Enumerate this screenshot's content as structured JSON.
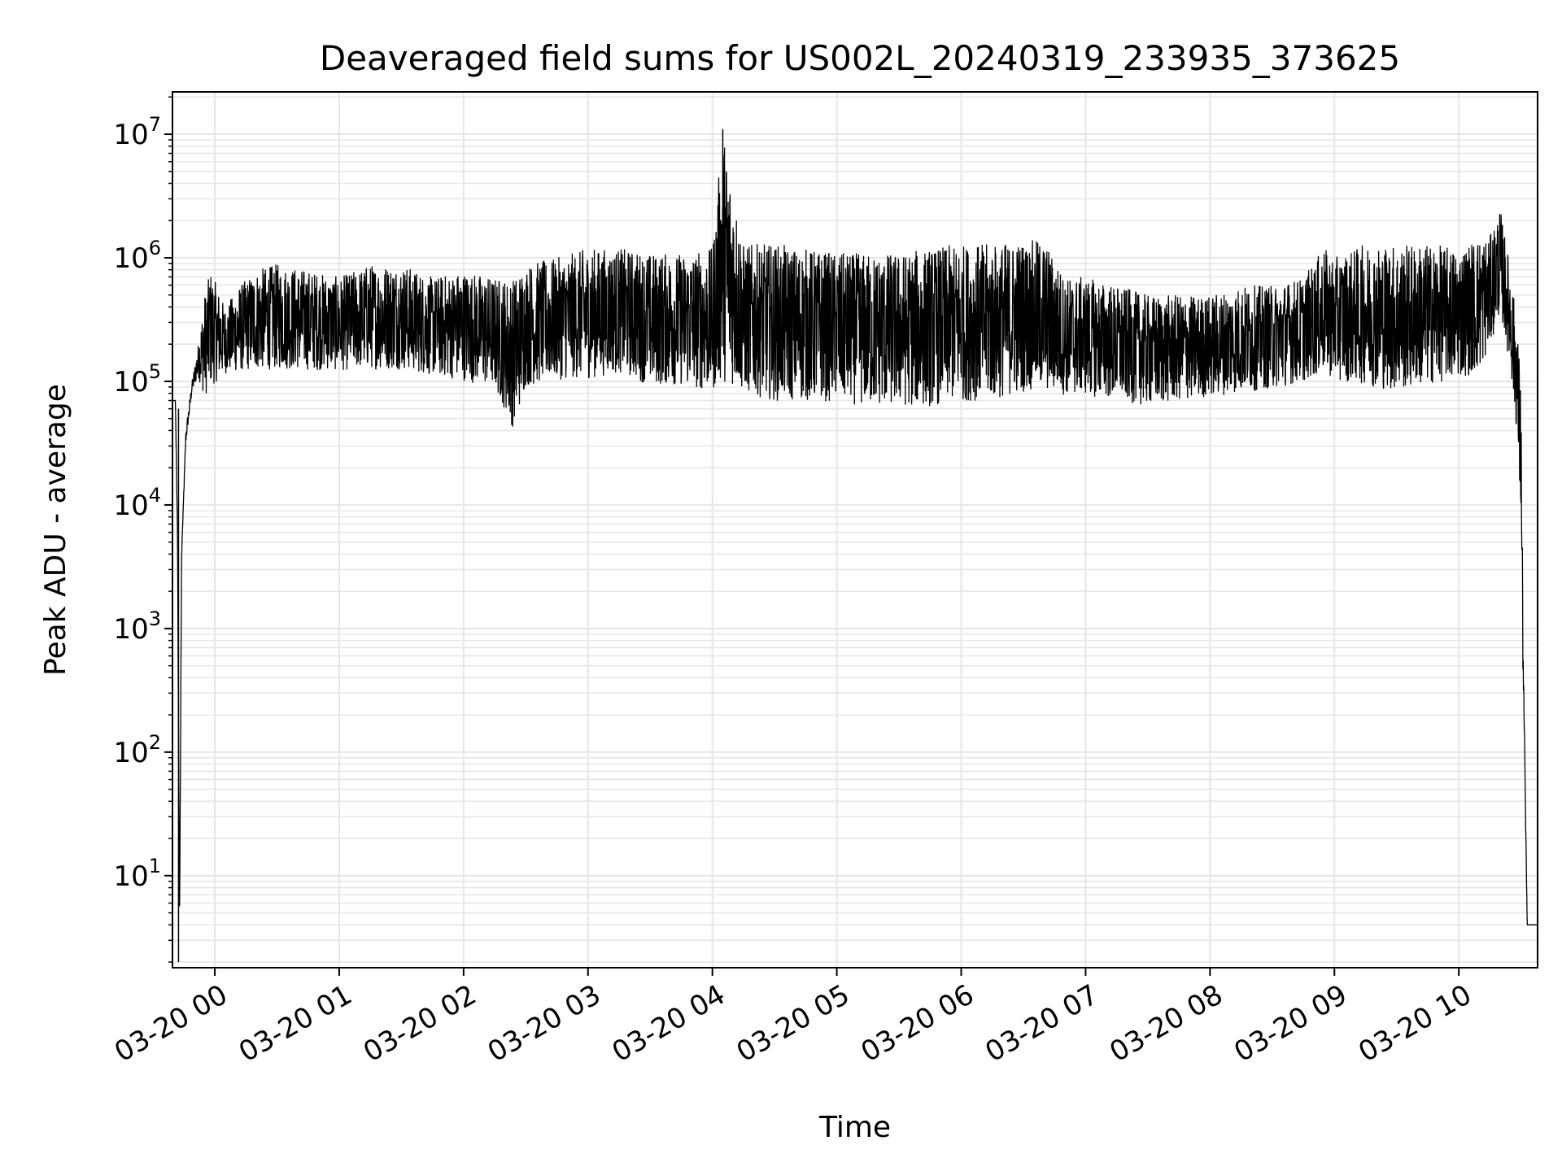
{
  "chart_data": {
    "type": "line",
    "title": "Deaveraged field sums for US002L_20240319_233935_373625",
    "xlabel": "Time",
    "ylabel": "Peak ADU - average",
    "y_scale": "log",
    "ylim": [
      1.8,
      22000000
    ],
    "xlim": [
      "2024-03-19T23:39:35",
      "2024-03-20T10:38:00"
    ],
    "grid": true,
    "grid_minor": true,
    "line_color": "#000000",
    "grid_color": "#e6e6e6",
    "x_ticks": [
      {
        "t": "2024-03-20T00:00:00",
        "label": "03-20 00"
      },
      {
        "t": "2024-03-20T01:00:00",
        "label": "03-20 01"
      },
      {
        "t": "2024-03-20T02:00:00",
        "label": "03-20 02"
      },
      {
        "t": "2024-03-20T03:00:00",
        "label": "03-20 03"
      },
      {
        "t": "2024-03-20T04:00:00",
        "label": "03-20 04"
      },
      {
        "t": "2024-03-20T05:00:00",
        "label": "03-20 05"
      },
      {
        "t": "2024-03-20T06:00:00",
        "label": "03-20 06"
      },
      {
        "t": "2024-03-20T07:00:00",
        "label": "03-20 07"
      },
      {
        "t": "2024-03-20T08:00:00",
        "label": "03-20 08"
      },
      {
        "t": "2024-03-20T09:00:00",
        "label": "03-20 09"
      },
      {
        "t": "2024-03-20T10:00:00",
        "label": "03-20 10"
      }
    ],
    "y_ticks": [
      {
        "value": 10,
        "base": "10",
        "exp": "1"
      },
      {
        "value": 100,
        "base": "10",
        "exp": "2"
      },
      {
        "value": 1000,
        "base": "10",
        "exp": "3"
      },
      {
        "value": 10000,
        "base": "10",
        "exp": "4"
      },
      {
        "value": 100000,
        "base": "10",
        "exp": "5"
      },
      {
        "value": 1000000,
        "base": "10",
        "exp": "6"
      },
      {
        "value": 10000000,
        "base": "10",
        "exp": "7"
      }
    ],
    "series": [
      {
        "x": [
          "2024-03-19T23:39:35",
          "2024-03-19T23:41:00",
          "2024-03-19T23:42:00",
          "2024-03-19T23:43:00",
          "2024-03-19T23:44:00",
          "2024-03-19T23:46:00",
          "2024-03-19T23:49:00",
          "2024-03-19T23:52:00",
          "2024-03-19T23:55:00",
          "2024-03-19T23:58:00",
          "2024-03-20T00:05:00",
          "2024-03-20T00:12:00",
          "2024-03-20T00:20:00",
          "2024-03-20T00:30:00",
          "2024-03-20T00:45:00",
          "2024-03-20T01:00:00",
          "2024-03-20T01:15:00",
          "2024-03-20T01:30:00",
          "2024-03-20T01:45:00",
          "2024-03-20T02:00:00",
          "2024-03-20T02:15:00",
          "2024-03-20T02:24:00",
          "2024-03-20T02:30:00",
          "2024-03-20T02:45:00",
          "2024-03-20T03:00:00",
          "2024-03-20T03:15:00",
          "2024-03-20T03:30:00",
          "2024-03-20T03:45:00",
          "2024-03-20T04:00:00",
          "2024-03-20T04:05:00",
          "2024-03-20T04:15:00",
          "2024-03-20T04:30:00",
          "2024-03-20T04:45:00",
          "2024-03-20T05:00:00",
          "2024-03-20T05:15:00",
          "2024-03-20T05:30:00",
          "2024-03-20T05:45:00",
          "2024-03-20T06:00:00",
          "2024-03-20T06:15:00",
          "2024-03-20T06:30:00",
          "2024-03-20T06:40:00",
          "2024-03-20T06:50:00",
          "2024-03-20T07:00:00",
          "2024-03-20T07:15:00",
          "2024-03-20T07:30:00",
          "2024-03-20T07:45:00",
          "2024-03-20T08:00:00",
          "2024-03-20T08:15:00",
          "2024-03-20T08:30:00",
          "2024-03-20T08:45:00",
          "2024-03-20T08:55:00",
          "2024-03-20T09:00:00",
          "2024-03-20T09:15:00",
          "2024-03-20T09:30:00",
          "2024-03-20T09:45:00",
          "2024-03-20T10:00:00",
          "2024-03-20T10:10:00",
          "2024-03-20T10:15:00",
          "2024-03-20T10:20:00",
          "2024-03-20T10:25:00",
          "2024-03-20T10:28:00",
          "2024-03-20T10:30:00",
          "2024-03-20T10:31:00",
          "2024-03-20T10:33:00",
          "2024-03-20T10:38:00"
        ],
        "upper": [
          70000,
          70000,
          6000,
          4,
          4000,
          40000,
          100000,
          200000,
          500000,
          800000,
          400000,
          600000,
          800000,
          900000,
          800000,
          700000,
          900000,
          900000,
          700000,
          800000,
          700000,
          700000,
          900000,
          1000000,
          1200000,
          1200000,
          1100000,
          1100000,
          1200000,
          11000000,
          1300000,
          1300000,
          1200000,
          1100000,
          1100000,
          1100000,
          1200000,
          1300000,
          1300000,
          1400000,
          1400000,
          700000,
          700000,
          600000,
          500000,
          500000,
          500000,
          600000,
          600000,
          700000,
          1200000,
          1000000,
          1300000,
          1300000,
          1300000,
          1200000,
          1500000,
          1500000,
          2500000,
          800000,
          300000,
          100000,
          1000,
          4,
          4
        ],
        "lower": [
          70000,
          70000,
          6000,
          4,
          4000,
          30000,
          80000,
          100000,
          60000,
          70000,
          100000,
          100000,
          100000,
          100000,
          100000,
          100000,
          100000,
          100000,
          90000,
          80000,
          70000,
          30000,
          70000,
          80000,
          80000,
          90000,
          70000,
          70000,
          60000,
          60000,
          60000,
          50000,
          50000,
          50000,
          45000,
          45000,
          45000,
          50000,
          50000,
          60000,
          60000,
          60000,
          60000,
          55000,
          50000,
          55000,
          60000,
          65000,
          70000,
          80000,
          90000,
          80000,
          70000,
          60000,
          70000,
          80000,
          90000,
          150000,
          300000,
          100000,
          30000,
          5000,
          300,
          4,
          4
        ]
      }
    ]
  }
}
